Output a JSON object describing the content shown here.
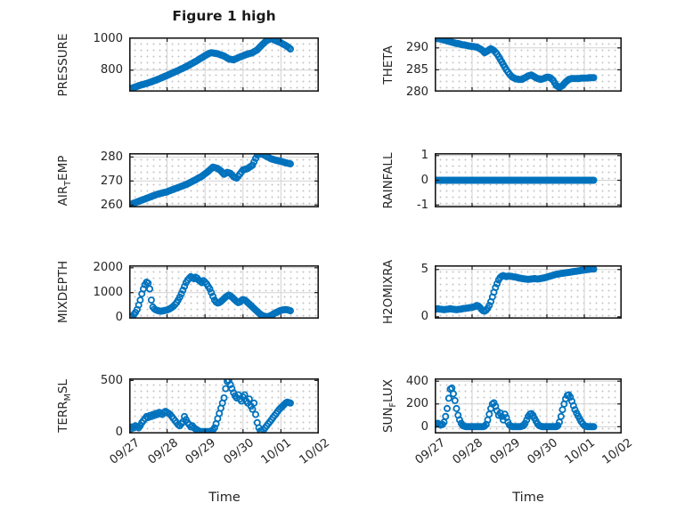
{
  "title": "Figure 1 high",
  "xlabel": "Time",
  "x_tick_labels": [
    "09/27",
    "09/28",
    "09/29",
    "09/30",
    "10/01",
    "10/02"
  ],
  "colors": {
    "marker": "#0072BD",
    "axis_box": "#1a1a1a",
    "grid_major": "#d2d2d2",
    "grid_minor_dot": "#c6c6c6",
    "text": "#262626"
  },
  "chart_data": {
    "type": "scatter",
    "marker": "o",
    "x_axis": {
      "label": "Time",
      "tick_labels": [
        "09/27",
        "09/28",
        "09/29",
        "09/30",
        "10/01",
        "10/02"
      ],
      "tick_hours": [
        0,
        24,
        48,
        72,
        96,
        120
      ],
      "range_hours": [
        0,
        120
      ],
      "data_hours_start": 0,
      "data_hours_step": 1
    },
    "grid": "major solid + dotted minor",
    "subplots": [
      {
        "name": "PRESSURE",
        "row": 0,
        "col": 0,
        "ylabel_parts": [
          {
            "t": "PRESSURE"
          }
        ],
        "ylim": [
          662,
          1010
        ],
        "yticks": [
          800,
          1000
        ],
        "values": [
          678,
          682,
          685,
          689,
          693,
          696,
          700,
          703,
          706,
          709,
          712,
          715,
          718,
          722,
          725,
          729,
          733,
          736,
          740,
          744,
          749,
          753,
          757,
          762,
          766,
          771,
          775,
          780,
          784,
          789,
          793,
          798,
          803,
          808,
          812,
          817,
          822,
          828,
          833,
          839,
          844,
          850,
          855,
          861,
          868,
          874,
          880,
          886,
          893,
          899,
          905,
          909,
          912,
          910,
          908,
          907,
          905,
          901,
          897,
          894,
          890,
          884,
          878,
          872,
          870,
          868,
          866,
          871,
          875,
          880,
          884,
          888,
          892,
          896,
          900,
          903,
          906,
          909,
          912,
          918,
          924,
          930,
          941,
          951,
          962,
          971,
          981,
          990,
          994,
          999,
          1003,
          998,
          993,
          988,
          984,
          979,
          975,
          969,
          964,
          958,
          951,
          944,
          936
        ]
      },
      {
        "name": "THETA",
        "row": 0,
        "col": 1,
        "ylabel_parts": [
          {
            "t": "THETA"
          }
        ],
        "ylim": [
          280,
          292.4
        ],
        "yticks": [
          280,
          285,
          290
        ],
        "values": [
          292.2,
          292.2,
          292.1,
          292.1,
          292,
          291.9,
          291.8,
          291.7,
          291.6,
          291.5,
          291.4,
          291.3,
          291.2,
          291.1,
          291,
          291,
          290.9,
          290.8,
          290.7,
          290.7,
          290.6,
          290.5,
          290.4,
          290.4,
          290.3,
          290.3,
          290.2,
          290.2,
          290,
          289.8,
          289.6,
          289.3,
          288.9,
          289.1,
          289.3,
          289.6,
          289.8,
          289.6,
          289.4,
          289,
          288.6,
          288,
          287.4,
          286.8,
          286.2,
          285.6,
          285,
          284.5,
          284,
          283.6,
          283.3,
          283.1,
          282.9,
          282.9,
          282.8,
          282.8,
          282.8,
          283,
          283.2,
          283.4,
          283.6,
          283.7,
          283.8,
          283.6,
          283.4,
          283.2,
          283,
          282.9,
          282.8,
          282.9,
          283,
          283.2,
          283.3,
          283.3,
          283.2,
          282.9,
          282.6,
          282,
          281.4,
          281.2,
          281,
          281.2,
          281.4,
          281.8,
          282.2,
          282.5,
          282.8,
          282.9,
          283,
          283,
          283,
          283,
          283,
          283,
          283.1,
          283.1,
          283.1,
          283.1,
          283.1,
          283.2,
          283.2,
          283.2,
          283.2
        ]
      },
      {
        "name": "AIR_TEMP",
        "row": 1,
        "col": 0,
        "ylabel_parts": [
          {
            "t": "AIR"
          },
          {
            "t": "T",
            "sub": true
          },
          {
            "t": "EMP"
          }
        ],
        "ylim": [
          259,
          281.6
        ],
        "yticks": [
          260,
          270,
          280
        ],
        "values": [
          260,
          260.3,
          260.5,
          260.8,
          261,
          261.3,
          261.5,
          261.8,
          262,
          262.3,
          262.5,
          262.8,
          263,
          263.3,
          263.5,
          263.8,
          264,
          264.3,
          264.5,
          264.7,
          264.8,
          265,
          265.2,
          265.3,
          265.5,
          265.8,
          266,
          266.3,
          266.5,
          266.8,
          267,
          267.3,
          267.5,
          267.8,
          268,
          268.3,
          268.5,
          268.8,
          269.2,
          269.5,
          269.8,
          270.2,
          270.5,
          270.9,
          271.3,
          271.6,
          272,
          272.5,
          273,
          273.5,
          274,
          274.6,
          275.2,
          275.8,
          275.6,
          275.4,
          275.2,
          274.7,
          274.2,
          273.5,
          272.8,
          273.2,
          273.6,
          273.4,
          273.2,
          272.5,
          271.8,
          271.5,
          271.2,
          272,
          272.9,
          273.7,
          274.6,
          274.8,
          275,
          275.2,
          275.7,
          276.1,
          276.6,
          278,
          279.4,
          280.8,
          281,
          281.2,
          281.3,
          280.9,
          280.6,
          280.2,
          279.9,
          279.5,
          279.2,
          279,
          278.8,
          278.6,
          278.5,
          278.3,
          278.2,
          278,
          277.8,
          277.6,
          277.4,
          277.3,
          277.1
        ]
      },
      {
        "name": "RAINFALL",
        "row": 1,
        "col": 1,
        "ylabel_parts": [
          {
            "t": "RAINFALL"
          }
        ],
        "ylim": [
          -1.1,
          1.1
        ],
        "yticks": [
          -1,
          0,
          1
        ],
        "values": [
          0,
          0,
          0,
          0,
          0,
          0,
          0,
          0,
          0,
          0,
          0,
          0,
          0,
          0,
          0,
          0,
          0,
          0,
          0,
          0,
          0,
          0,
          0,
          0,
          0,
          0,
          0,
          0,
          0,
          0,
          0,
          0,
          0,
          0,
          0,
          0,
          0,
          0,
          0,
          0,
          0,
          0,
          0,
          0,
          0,
          0,
          0,
          0,
          0,
          0,
          0,
          0,
          0,
          0,
          0,
          0,
          0,
          0,
          0,
          0,
          0,
          0,
          0,
          0,
          0,
          0,
          0,
          0,
          0,
          0,
          0,
          0,
          0,
          0,
          0,
          0,
          0,
          0,
          0,
          0,
          0,
          0,
          0,
          0,
          0,
          0,
          0,
          0,
          0,
          0,
          0,
          0,
          0,
          0,
          0,
          0,
          0,
          0,
          0,
          0,
          0,
          0,
          0
        ]
      },
      {
        "name": "MIXDEPTH",
        "row": 2,
        "col": 0,
        "ylabel_parts": [
          {
            "t": "MIXDEPTH"
          }
        ],
        "ylim": [
          -50,
          2100
        ],
        "yticks": [
          0,
          1000,
          2000
        ],
        "values": [
          10,
          30,
          60,
          120,
          200,
          320,
          500,
          700,
          950,
          1150,
          1320,
          1420,
          1380,
          1150,
          700,
          420,
          340,
          300,
          280,
          260,
          250,
          260,
          270,
          290,
          300,
          330,
          360,
          400,
          450,
          520,
          600,
          700,
          820,
          950,
          1100,
          1250,
          1400,
          1500,
          1580,
          1640,
          1600,
          1560,
          1620,
          1580,
          1500,
          1450,
          1400,
          1480,
          1420,
          1350,
          1250,
          1150,
          1000,
          850,
          700,
          620,
          580,
          600,
          640,
          700,
          760,
          820,
          860,
          900,
          870,
          820,
          760,
          700,
          640,
          600,
          620,
          680,
          720,
          700,
          660,
          600,
          540,
          480,
          420,
          360,
          300,
          240,
          180,
          130,
          90,
          60,
          40,
          30,
          40,
          60,
          90,
          130,
          170,
          200,
          230,
          260,
          280,
          300,
          310,
          320,
          310,
          290,
          270
        ]
      },
      {
        "name": "H2OMIXRA",
        "row": 2,
        "col": 1,
        "ylabel_parts": [
          {
            "t": "H2OMIXRA"
          }
        ],
        "ylim": [
          -0.2,
          5.45
        ],
        "yticks": [
          0,
          5
        ],
        "values": [
          0.8,
          0.82,
          0.85,
          0.82,
          0.8,
          0.78,
          0.75,
          0.78,
          0.8,
          0.82,
          0.85,
          0.82,
          0.8,
          0.78,
          0.75,
          0.78,
          0.8,
          0.82,
          0.85,
          0.88,
          0.9,
          0.92,
          0.95,
          0.98,
          1,
          1.05,
          1.1,
          1.2,
          1.15,
          1,
          0.8,
          0.65,
          0.6,
          0.7,
          0.9,
          1.2,
          1.6,
          2.1,
          2.6,
          3.1,
          3.5,
          3.9,
          4.15,
          4.3,
          4.35,
          4.3,
          4.25,
          4.3,
          4.3,
          4.28,
          4.25,
          4.22,
          4.2,
          4.15,
          4.1,
          4.08,
          4.05,
          4.02,
          4,
          3.98,
          3.95,
          3.98,
          4,
          4.02,
          4.05,
          4.02,
          4,
          4.02,
          4.05,
          4.08,
          4.1,
          4.15,
          4.2,
          4.25,
          4.3,
          4.35,
          4.4,
          4.45,
          4.5,
          4.52,
          4.55,
          4.58,
          4.6,
          4.62,
          4.65,
          4.68,
          4.7,
          4.72,
          4.75,
          4.78,
          4.8,
          4.82,
          4.85,
          4.88,
          4.9,
          4.92,
          4.95,
          4.98,
          5,
          5.02,
          5.05,
          5.05,
          5.05
        ]
      },
      {
        "name": "TERR_MSL",
        "row": 3,
        "col": 0,
        "ylabel_parts": [
          {
            "t": "TERR"
          },
          {
            "t": "M",
            "sub": true
          },
          {
            "t": "SL"
          }
        ],
        "ylim": [
          -15,
          520
        ],
        "yticks": [
          0,
          500
        ],
        "values": [
          40,
          30,
          50,
          40,
          60,
          50,
          40,
          60,
          90,
          110,
          130,
          150,
          140,
          160,
          150,
          170,
          160,
          180,
          170,
          190,
          180,
          170,
          190,
          200,
          190,
          180,
          170,
          150,
          130,
          110,
          90,
          70,
          60,
          80,
          100,
          150,
          120,
          90,
          70,
          50,
          60,
          40,
          30,
          20,
          10,
          5,
          5,
          5,
          5,
          5,
          5,
          5,
          10,
          20,
          40,
          80,
          130,
          180,
          230,
          280,
          330,
          420,
          490,
          500,
          460,
          420,
          380,
          350,
          330,
          360,
          320,
          300,
          340,
          360,
          300,
          280,
          320,
          250,
          220,
          280,
          170,
          90,
          40,
          10,
          5,
          20,
          40,
          60,
          80,
          100,
          120,
          140,
          160,
          180,
          200,
          220,
          235,
          250,
          265,
          280,
          290,
          285,
          280
        ]
      },
      {
        "name": "SUN_FLUX",
        "row": 3,
        "col": 1,
        "ylabel_parts": [
          {
            "t": "SUN"
          },
          {
            "t": "F",
            "sub": true
          },
          {
            "t": "LUX"
          }
        ],
        "ylim": [
          -60,
          425
        ],
        "yticks": [
          0,
          200,
          400
        ],
        "values": [
          15,
          25,
          30,
          20,
          15,
          20,
          40,
          90,
          160,
          250,
          330,
          340,
          290,
          230,
          160,
          100,
          60,
          30,
          10,
          5,
          0,
          0,
          0,
          0,
          0,
          0,
          0,
          0,
          0,
          0,
          0,
          0,
          5,
          20,
          60,
          110,
          160,
          200,
          210,
          180,
          140,
          100,
          120,
          90,
          60,
          110,
          80,
          40,
          15,
          5,
          0,
          0,
          0,
          0,
          0,
          0,
          5,
          10,
          30,
          60,
          90,
          110,
          115,
          100,
          75,
          50,
          25,
          10,
          5,
          0,
          0,
          0,
          0,
          0,
          0,
          0,
          0,
          0,
          0,
          10,
          40,
          90,
          150,
          200,
          245,
          275,
          280,
          260,
          225,
          185,
          150,
          120,
          95,
          70,
          45,
          25,
          10,
          5,
          0,
          0,
          0,
          0,
          0
        ]
      }
    ]
  }
}
